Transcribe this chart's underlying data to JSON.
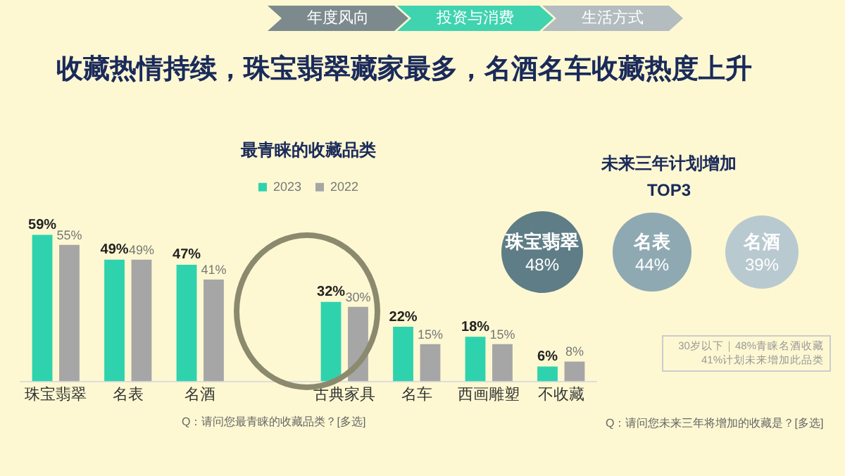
{
  "chart_data": [
    {
      "type": "other",
      "title": "收藏热情持续，珠宝翡翠藏家最多，名酒名车收藏热度上升",
      "annotations": [
        "年度风向",
        "投资与消费",
        "生活方式"
      ]
    },
    {
      "type": "bar",
      "title": "最青睐的收藏品类",
      "categories": [
        "珠宝翡翠",
        "名表",
        "名酒",
        null,
        "古典家具",
        "名车",
        "西画雕塑",
        "不收藏"
      ],
      "series": [
        {
          "name": "2023",
          "color": "#2ed3ae",
          "values": [
            59,
            49,
            47,
            null,
            32,
            22,
            18,
            6
          ],
          "value_labels": [
            "59%",
            "49%",
            "47%",
            null,
            "32%",
            "22%",
            "18%",
            "6%"
          ]
        },
        {
          "name": "2022",
          "color": "#a6a6a6",
          "values": [
            55,
            49,
            41,
            null,
            30,
            15,
            15,
            8
          ],
          "value_labels": [
            "55%",
            "49%",
            "41%",
            null,
            "30%",
            "15%",
            "15%",
            "8%"
          ]
        }
      ],
      "legend": "top",
      "grid": false,
      "tick_labels": "x",
      "annotations": [
        "Q：请问您最青睐的收藏品类？[多选]"
      ]
    },
    {
      "type": "other",
      "title": "未来三年计划增加",
      "subtitle": "TOP3",
      "categories": [
        "珠宝翡翠",
        "名表",
        "名酒"
      ],
      "values": [
        48,
        44,
        39
      ],
      "value_labels": [
        "48%",
        "44%",
        "39%"
      ],
      "colors": [
        "#5e7d86",
        "#8fa9b3",
        "#b9c9d0"
      ],
      "annotations": [
        "30岁以下｜48%青睐名酒收藏 41%计划未来增加此品类",
        "Q：请问您未来三年将增加的收藏是？[多选]"
      ]
    }
  ]
}
